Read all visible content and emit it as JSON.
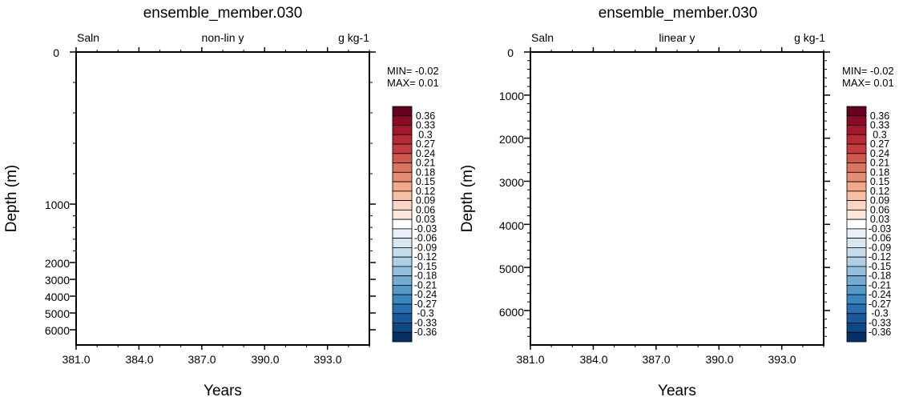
{
  "chart_data": [
    {
      "type": "contour",
      "title": "ensemble_member.030",
      "left_label": "Saln",
      "center_label": "non-lin y",
      "right_label": "g kg-1",
      "xlabel": "Years",
      "ylabel": "Depth (m)",
      "x_ticks": [
        "381.0",
        "384.0",
        "387.0",
        "390.0",
        "393.0"
      ],
      "x_tick_values": [
        381,
        384,
        387,
        390,
        393
      ],
      "xlim": [
        381,
        395
      ],
      "y_scale": "nonlinear",
      "y_reversed": true,
      "y_ticks": [
        "0",
        "1000",
        "2000",
        "3000",
        "4000",
        "5000",
        "6000"
      ],
      "y_tick_values": [
        0,
        1000,
        2000,
        3000,
        4000,
        5000,
        6000
      ],
      "ylim": [
        0,
        6500
      ],
      "min_label": "MIN= -0.02",
      "max_label": "MAX=  0.01",
      "colorbar": {
        "labels": [
          "0.36",
          "0.33",
          "0.3",
          "0.27",
          "0.24",
          "0.21",
          "0.18",
          "0.15",
          "0.12",
          "0.09",
          "0.06",
          "0.03",
          "-0.03",
          "-0.06",
          "-0.09",
          "-0.12",
          "-0.15",
          "-0.18",
          "-0.21",
          "-0.24",
          "-0.27",
          "-0.3",
          "-0.33",
          "-0.36"
        ],
        "colors": [
          "#67001f",
          "#8b0a25",
          "#a6172d",
          "#b82a35",
          "#c43d3e",
          "#d0574b",
          "#dc735c",
          "#e88e70",
          "#f1a98a",
          "#f6c0a5",
          "#fad6c3",
          "#fde8db",
          "#ffffff",
          "#e9f0f7",
          "#d8e7f1",
          "#c6dbeb",
          "#aecfe5",
          "#92c0dd",
          "#72acd3",
          "#519ac8",
          "#3987bf",
          "#2670b1",
          "#175a9c",
          "#0e4786",
          "#053061"
        ]
      }
    },
    {
      "type": "contour",
      "title": "ensemble_member.030",
      "left_label": "Saln",
      "center_label": "linear y",
      "right_label": "g kg-1",
      "xlabel": "Years",
      "ylabel": "Depth (m)",
      "x_ticks": [
        "381.0",
        "384.0",
        "387.0",
        "390.0",
        "393.0"
      ],
      "x_tick_values": [
        381,
        384,
        387,
        390,
        393
      ],
      "xlim": [
        381,
        395
      ],
      "y_scale": "linear",
      "y_reversed": true,
      "y_ticks": [
        "0",
        "1000",
        "2000",
        "3000",
        "4000",
        "5000",
        "6000"
      ],
      "y_tick_values": [
        0,
        1000,
        2000,
        3000,
        4000,
        5000,
        6000
      ],
      "ylim": [
        0,
        6800
      ],
      "min_label": "MIN= -0.02",
      "max_label": "MAX=  0.01",
      "colorbar": {
        "labels": [
          "0.36",
          "0.33",
          "0.3",
          "0.27",
          "0.24",
          "0.21",
          "0.18",
          "0.15",
          "0.12",
          "0.09",
          "0.06",
          "0.03",
          "-0.03",
          "-0.06",
          "-0.09",
          "-0.12",
          "-0.15",
          "-0.18",
          "-0.21",
          "-0.24",
          "-0.27",
          "-0.3",
          "-0.33",
          "-0.36"
        ],
        "colors": [
          "#67001f",
          "#8b0a25",
          "#a6172d",
          "#b82a35",
          "#c43d3e",
          "#d0574b",
          "#dc735c",
          "#e88e70",
          "#f1a98a",
          "#f6c0a5",
          "#fad6c3",
          "#fde8db",
          "#ffffff",
          "#e9f0f7",
          "#d8e7f1",
          "#c6dbeb",
          "#aecfe5",
          "#92c0dd",
          "#72acd3",
          "#519ac8",
          "#3987bf",
          "#2670b1",
          "#175a9c",
          "#0e4786",
          "#053061"
        ]
      }
    }
  ]
}
